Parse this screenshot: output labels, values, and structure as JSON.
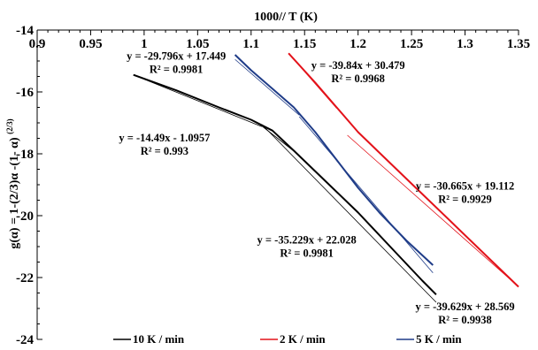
{
  "chart_data": {
    "type": "line",
    "title": "",
    "xlabel": "1000// T (K)",
    "ylabel": {
      "main": "g(α) = 1-(2/3)α  -(1- α) ",
      "sup": "(2/3)"
    },
    "xlim": [
      0.9,
      1.35
    ],
    "ylim": [
      -24,
      -14
    ],
    "x_ticks": [
      "0.9",
      "0.95",
      "1",
      "1.05",
      "1.1",
      "1.15",
      "1.2",
      "1.25",
      "1.3",
      "1.35"
    ],
    "y_ticks": [
      "-14",
      "-16",
      "-18",
      "-20",
      "-22",
      "-24"
    ],
    "x_tick_values": [
      0.9,
      0.95,
      1.0,
      1.05,
      1.1,
      1.15,
      1.2,
      1.25,
      1.3,
      1.35
    ],
    "y_tick_values": [
      -14,
      -16,
      -18,
      -20,
      -22,
      -24
    ],
    "x_axis_position": "top",
    "grid": false,
    "legend_position": "bottom",
    "series": [
      {
        "name": "10 K / min",
        "color": "#000000",
        "data": [
          [
            0.99,
            -15.45
          ],
          [
            1.03,
            -15.95
          ],
          [
            1.07,
            -16.5
          ],
          [
            1.1,
            -16.9
          ],
          [
            1.12,
            -17.25
          ],
          [
            1.14,
            -17.9
          ],
          [
            1.17,
            -18.9
          ],
          [
            1.2,
            -19.9
          ],
          [
            1.23,
            -21.0
          ],
          [
            1.26,
            -22.1
          ],
          [
            1.273,
            -22.55
          ]
        ],
        "fits": [
          {
            "x": [
              0.99,
              1.11
            ],
            "y": [
              -15.45,
              -17.12
            ]
          },
          {
            "x": [
              1.11,
              1.273
            ],
            "y": [
              -17.05,
              -22.8
            ]
          },
          {
            "x": [
              1.11,
              1.145
            ],
            "y": [
              -17.1,
              -18.05
            ]
          }
        ]
      },
      {
        "name": "2 K / min",
        "color": "#e3121a",
        "data": [
          [
            1.135,
            -14.75
          ],
          [
            1.16,
            -15.7
          ],
          [
            1.18,
            -16.5
          ],
          [
            1.2,
            -17.3
          ],
          [
            1.23,
            -18.3
          ],
          [
            1.26,
            -19.3
          ],
          [
            1.29,
            -20.3
          ],
          [
            1.32,
            -21.3
          ],
          [
            1.35,
            -22.3
          ]
        ],
        "fits": [
          {
            "x": [
              1.135,
              1.18
            ],
            "y": [
              -14.75,
              -16.53
            ]
          },
          {
            "x": [
              1.19,
              1.35
            ],
            "y": [
              -17.4,
              -22.3
            ]
          }
        ]
      },
      {
        "name": "5 K / min",
        "color": "#1f3c88",
        "data": [
          [
            1.085,
            -14.8
          ],
          [
            1.1,
            -15.3
          ],
          [
            1.12,
            -15.9
          ],
          [
            1.14,
            -16.5
          ],
          [
            1.16,
            -17.3
          ],
          [
            1.18,
            -18.2
          ],
          [
            1.2,
            -19.1
          ],
          [
            1.22,
            -19.9
          ],
          [
            1.245,
            -20.8
          ],
          [
            1.27,
            -21.6
          ]
        ],
        "fits": [
          {
            "x": [
              1.085,
              1.145
            ],
            "y": [
              -14.95,
              -16.75
            ]
          },
          {
            "x": [
              1.145,
              1.27
            ],
            "y": [
              -16.8,
              -21.85
            ]
          }
        ]
      }
    ],
    "annotations": [
      {
        "id": "fit-10-low",
        "color": "#000000",
        "text": "y = -29.796x + 17.449",
        "r2": "R² = 0.9981",
        "at": [
          1.03,
          -14.95
        ]
      },
      {
        "id": "fit-2-low",
        "color": "#000000",
        "text": "y = -39.84x + 30.479",
        "r2": "R² = 0.9968",
        "at": [
          1.2,
          -15.25
        ]
      },
      {
        "id": "fit-5-low",
        "color": "#000000",
        "text": "y = -14.49x - 1.0957",
        "r2": "R² = 0.993",
        "at": [
          1.019,
          -17.6
        ]
      },
      {
        "id": "fit-2-high",
        "color": "#000000",
        "text": "y = -30.665x + 19.112",
        "r2": "R² = 0.9929",
        "at": [
          1.3,
          -19.15
        ]
      },
      {
        "id": "fit-10-high",
        "color": "#000000",
        "text": "y = -35.229x + 22.028",
        "r2": "R² = 0.9981",
        "at": [
          1.152,
          -20.9
        ]
      },
      {
        "id": "fit-5-high",
        "color": "#000000",
        "text": "y = -39.629x + 28.569",
        "r2": "R² = 0.9938",
        "at": [
          1.3,
          -23.05
        ]
      }
    ]
  }
}
